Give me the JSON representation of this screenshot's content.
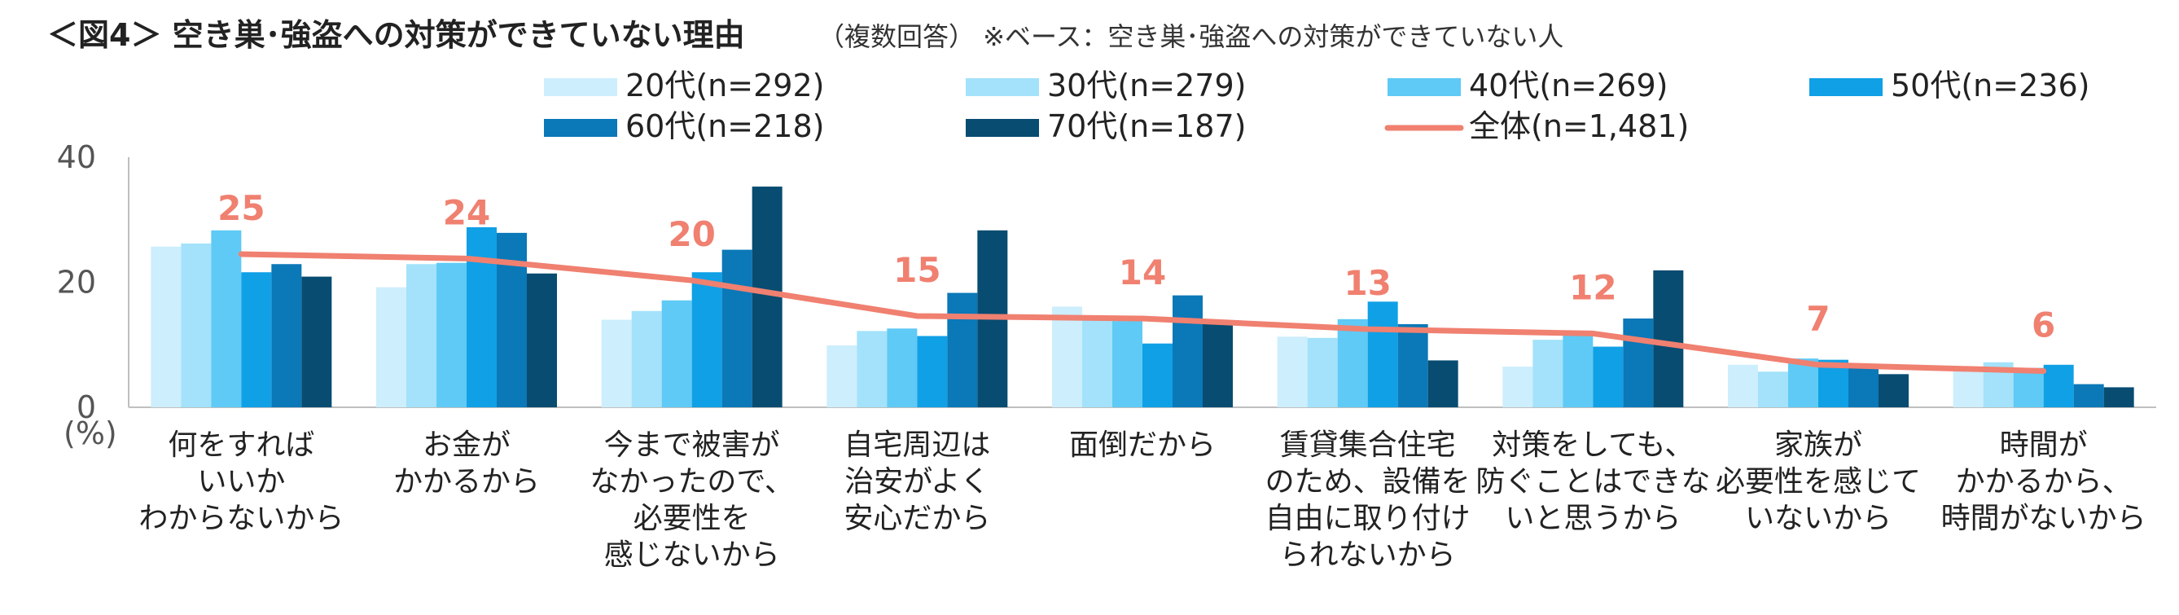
{
  "chart_data": {
    "type": "bar",
    "title": "＜図4＞ 空き巣･強盗への対策ができていない理由",
    "subtitle": "（複数回答）  ※ベース：空き巣･強盗への対策ができていない人",
    "ylabel": "(%)",
    "ylim": [
      0,
      40
    ],
    "yticks": [
      "0",
      "20",
      "40"
    ],
    "grid": false,
    "legend_position": "top",
    "categories": [
      [
        "何をすれば",
        "いいか",
        "わからないから"
      ],
      [
        "お金が",
        "かかるから"
      ],
      [
        "今まで被害が",
        "なかったので、",
        "必要性を",
        "感じないから"
      ],
      [
        "自宅周辺は",
        "治安がよく",
        "安心だから"
      ],
      [
        "面倒だから"
      ],
      [
        "賃貸集合住宅",
        "のため、設備を",
        "自由に取り付け",
        "られないから"
      ],
      [
        "対策をしても、",
        "防ぐことはできな",
        "いと思うから"
      ],
      [
        "家族が",
        "必要性を感じて",
        "いないから"
      ],
      [
        "時間が",
        "かかるから、",
        "時間がないから"
      ]
    ],
    "series": [
      {
        "name": "20代(n=292)",
        "color": "#cdeefc",
        "values": [
          25.7,
          19.2,
          14.0,
          9.9,
          16.1,
          11.3,
          6.5,
          6.8,
          6.2
        ]
      },
      {
        "name": "30代(n=279)",
        "color": "#a3e2fa",
        "values": [
          26.2,
          22.9,
          15.4,
          12.2,
          14.3,
          11.1,
          10.8,
          5.7,
          7.2
        ]
      },
      {
        "name": "40代(n=269)",
        "color": "#5fcaf5",
        "values": [
          28.3,
          23.1,
          17.1,
          12.6,
          13.8,
          14.1,
          11.9,
          7.8,
          6.3
        ]
      },
      {
        "name": "50代(n=236)",
        "color": "#10a0e6",
        "values": [
          21.6,
          28.8,
          21.6,
          11.4,
          10.2,
          16.9,
          9.7,
          7.6,
          6.8
        ]
      },
      {
        "name": "60代(n=218)",
        "color": "#0b78b8",
        "values": [
          22.9,
          27.9,
          25.2,
          18.3,
          17.9,
          13.3,
          14.2,
          6.4,
          3.7
        ]
      },
      {
        "name": "70代(n=187)",
        "color": "#084c71",
        "values": [
          20.9,
          21.4,
          35.3,
          28.3,
          13.4,
          7.5,
          21.9,
          5.3,
          3.2
        ]
      }
    ],
    "line": {
      "name": "全体(n=1,481)",
      "color": "#f08070",
      "values": [
        24.5,
        23.8,
        20.3,
        14.6,
        14.2,
        12.5,
        11.8,
        6.8,
        5.8
      ],
      "labels": [
        "25",
        "24",
        "20",
        "15",
        "14",
        "13",
        "12",
        "7",
        "6"
      ]
    }
  }
}
